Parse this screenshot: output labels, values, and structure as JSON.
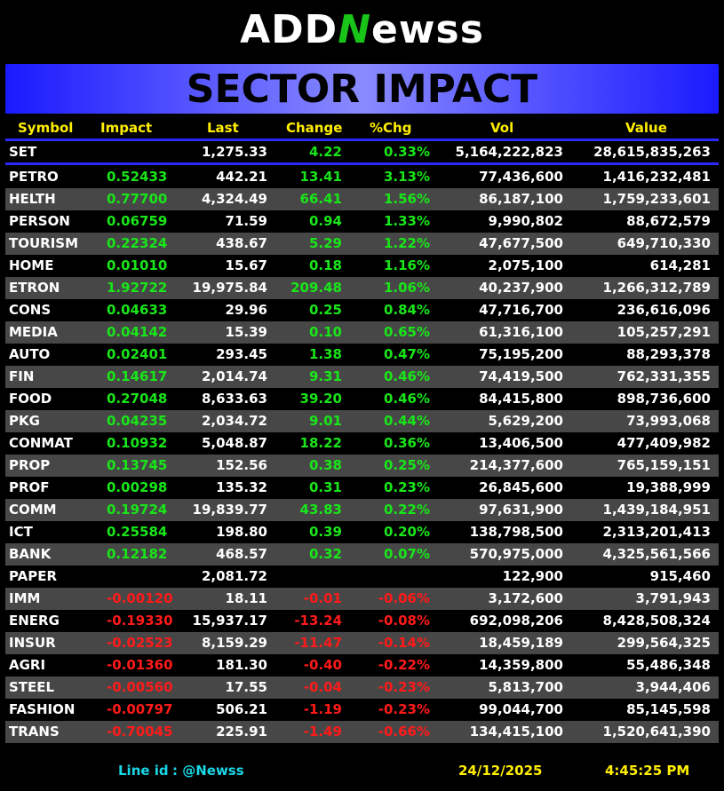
{
  "logo": {
    "prefix": "ADD",
    "mark": "N",
    "suffix": "ewss"
  },
  "banner": "SECTOR IMPACT",
  "table": {
    "columns": [
      "Symbol",
      "Impact",
      "Last",
      "Change",
      "%Chg",
      "Vol",
      "Value"
    ],
    "index_row": [
      "SET",
      null,
      "1,275.33",
      "4.22",
      "0.33%",
      "5,164,222,823",
      "28,615,835,263"
    ],
    "rows": [
      [
        "PETRO",
        "0.52433",
        "442.21",
        "13.41",
        "3.13%",
        "77,436,600",
        "1,416,232,481"
      ],
      [
        "HELTH",
        "0.77700",
        "4,324.49",
        "66.41",
        "1.56%",
        "86,187,100",
        "1,759,233,601"
      ],
      [
        "PERSON",
        "0.06759",
        "71.59",
        "0.94",
        "1.33%",
        "9,990,802",
        "88,672,579"
      ],
      [
        "TOURISM",
        "0.22324",
        "438.67",
        "5.29",
        "1.22%",
        "47,677,500",
        "649,710,330"
      ],
      [
        "HOME",
        "0.01010",
        "15.67",
        "0.18",
        "1.16%",
        "2,075,100",
        "614,281"
      ],
      [
        "ETRON",
        "1.92722",
        "19,975.84",
        "209.48",
        "1.06%",
        "40,237,900",
        "1,266,312,789"
      ],
      [
        "CONS",
        "0.04633",
        "29.96",
        "0.25",
        "0.84%",
        "47,716,700",
        "236,616,096"
      ],
      [
        "MEDIA",
        "0.04142",
        "15.39",
        "0.10",
        "0.65%",
        "61,316,100",
        "105,257,291"
      ],
      [
        "AUTO",
        "0.02401",
        "293.45",
        "1.38",
        "0.47%",
        "75,195,200",
        "88,293,378"
      ],
      [
        "FIN",
        "0.14617",
        "2,014.74",
        "9.31",
        "0.46%",
        "74,419,500",
        "762,331,355"
      ],
      [
        "FOOD",
        "0.27048",
        "8,633.63",
        "39.20",
        "0.46%",
        "84,415,800",
        "898,736,600"
      ],
      [
        "PKG",
        "0.04235",
        "2,034.72",
        "9.01",
        "0.44%",
        "5,629,200",
        "73,993,068"
      ],
      [
        "CONMAT",
        "0.10932",
        "5,048.87",
        "18.22",
        "0.36%",
        "13,406,500",
        "477,409,982"
      ],
      [
        "PROP",
        "0.13745",
        "152.56",
        "0.38",
        "0.25%",
        "214,377,600",
        "765,159,151"
      ],
      [
        "PROF",
        "0.00298",
        "135.32",
        "0.31",
        "0.23%",
        "26,845,600",
        "19,388,999"
      ],
      [
        "COMM",
        "0.19724",
        "19,839.77",
        "43.83",
        "0.22%",
        "97,631,900",
        "1,439,184,951"
      ],
      [
        "ICT",
        "0.25584",
        "198.80",
        "0.39",
        "0.20%",
        "138,798,500",
        "2,313,201,413"
      ],
      [
        "BANK",
        "0.12182",
        "468.57",
        "0.32",
        "0.07%",
        "570,975,000",
        "4,325,561,566"
      ],
      [
        "PAPER",
        null,
        "2,081.72",
        null,
        null,
        "122,900",
        "915,460"
      ],
      [
        "IMM",
        "-0.00120",
        "18.11",
        "-0.01",
        "-0.06%",
        "3,172,600",
        "3,791,943"
      ],
      [
        "ENERG",
        "-0.19330",
        "15,937.17",
        "-13.24",
        "-0.08%",
        "692,098,206",
        "8,428,508,324"
      ],
      [
        "INSUR",
        "-0.02523",
        "8,159.29",
        "-11.47",
        "-0.14%",
        "18,459,189",
        "299,564,325"
      ],
      [
        "AGRI",
        "-0.01360",
        "181.30",
        "-0.40",
        "-0.22%",
        "14,359,800",
        "55,486,348"
      ],
      [
        "STEEL",
        "-0.00560",
        "17.55",
        "-0.04",
        "-0.23%",
        "5,813,700",
        "3,944,406"
      ],
      [
        "FASHION",
        "-0.00797",
        "506.21",
        "-1.19",
        "-0.23%",
        "99,044,700",
        "85,145,598"
      ],
      [
        "TRANS",
        "-0.70045",
        "225.91",
        "-1.49",
        "-0.66%",
        "134,415,100",
        "1,520,641,390"
      ]
    ]
  },
  "footer": {
    "line_label": "Line id",
    "line_id": ": @Newss",
    "date": "24/12/2025",
    "time": "4:45:25 PM"
  }
}
